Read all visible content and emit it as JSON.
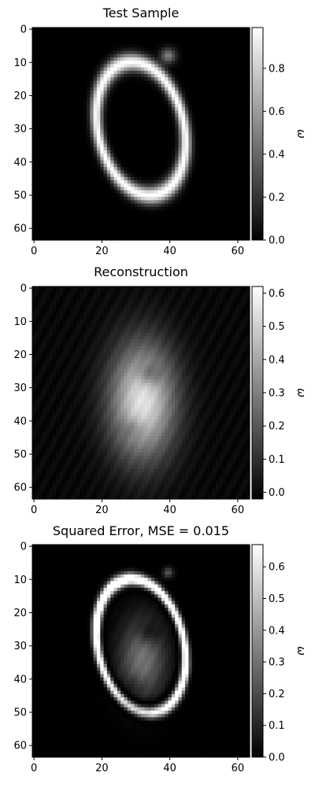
{
  "chart_data": [
    {
      "type": "heatmap",
      "title": "Test Sample",
      "image_size": [
        64,
        64
      ],
      "xticks": [
        "0",
        "20",
        "40",
        "60"
      ],
      "yticks": [
        "0",
        "10",
        "20",
        "30",
        "40",
        "50",
        "60"
      ],
      "colormap": "gray",
      "colorbar": {
        "label": "ω",
        "range": [
          0.0,
          0.99
        ],
        "ticks": [
          "0.0",
          "0.2",
          "0.4",
          "0.6",
          "0.8"
        ],
        "tick_values": [
          0.0,
          0.2,
          0.4,
          0.6,
          0.8
        ]
      },
      "pattern": "digit-zero"
    },
    {
      "type": "heatmap",
      "title": "Reconstruction",
      "image_size": [
        64,
        64
      ],
      "xticks": [
        "0",
        "20",
        "40",
        "60"
      ],
      "yticks": [
        "0",
        "10",
        "20",
        "30",
        "40",
        "50",
        "60"
      ],
      "colormap": "gray",
      "colorbar": {
        "label": "ω",
        "range": [
          -0.02,
          0.62
        ],
        "ticks": [
          "0.0",
          "0.1",
          "0.2",
          "0.3",
          "0.4",
          "0.5",
          "0.6"
        ],
        "tick_values": [
          0.0,
          0.1,
          0.2,
          0.3,
          0.4,
          0.5,
          0.6
        ]
      },
      "pattern": "blurry-eight"
    },
    {
      "type": "heatmap",
      "title": "Squared Error, MSE = 0.015",
      "image_size": [
        64,
        64
      ],
      "xticks": [
        "0",
        "20",
        "40",
        "60"
      ],
      "yticks": [
        "0",
        "10",
        "20",
        "30",
        "40",
        "50",
        "60"
      ],
      "colormap": "gray",
      "colorbar": {
        "label": "ω",
        "range": [
          0.0,
          0.67
        ],
        "ticks": [
          "0.0",
          "0.1",
          "0.2",
          "0.3",
          "0.4",
          "0.5",
          "0.6"
        ],
        "tick_values": [
          0.0,
          0.1,
          0.2,
          0.3,
          0.4,
          0.5,
          0.6
        ]
      },
      "pattern": "squared-error"
    }
  ]
}
